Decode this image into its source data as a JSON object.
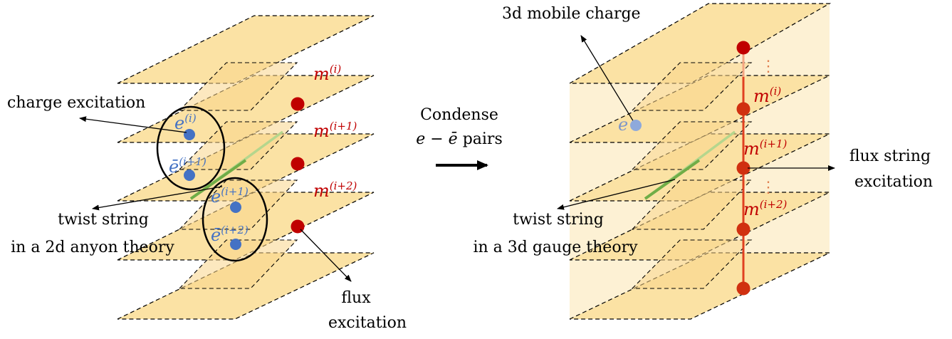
{
  "colors": {
    "plane_fill": "#fbe2a4",
    "flux_red": "#c00000",
    "charge_blue": "#4472c4",
    "twist_green": "#70ad47",
    "string_line": "#e04020"
  },
  "left": {
    "charge_label": "charge excitation",
    "twist_label_1": "twist string",
    "twist_label_2": "in a 2d anyon theory",
    "flux_label_1": "flux",
    "flux_label_2": "excitation",
    "m1": {
      "base": "m",
      "sup": "(i)"
    },
    "m2": {
      "base": "m",
      "sup": "(i+1)"
    },
    "m3": {
      "base": "m",
      "sup": "(i+2)"
    },
    "e1": {
      "base": "e",
      "sup": "(i)"
    },
    "e2": {
      "base": "ē",
      "sup": "(i+1)"
    },
    "e3": {
      "base": "e",
      "sup": "(i+1)"
    },
    "e4": {
      "base": "ē",
      "sup": "(i+2)"
    }
  },
  "middle": {
    "line1": "Condense",
    "line2_math": "e − ē",
    "line2_text": " pairs"
  },
  "right": {
    "mobile_label": "3d mobile charge",
    "e_label": "e",
    "twist_label_1": "twist string",
    "twist_label_2": "in a 3d gauge theory",
    "flux_label_1": "flux string",
    "flux_label_2": "excitation",
    "m1": {
      "base": "m",
      "sup": "(i)"
    },
    "m2": {
      "base": "m",
      "sup": "(i+1)"
    },
    "m3": {
      "base": "m",
      "sup": "(i+2)"
    },
    "dots": "⋮"
  }
}
